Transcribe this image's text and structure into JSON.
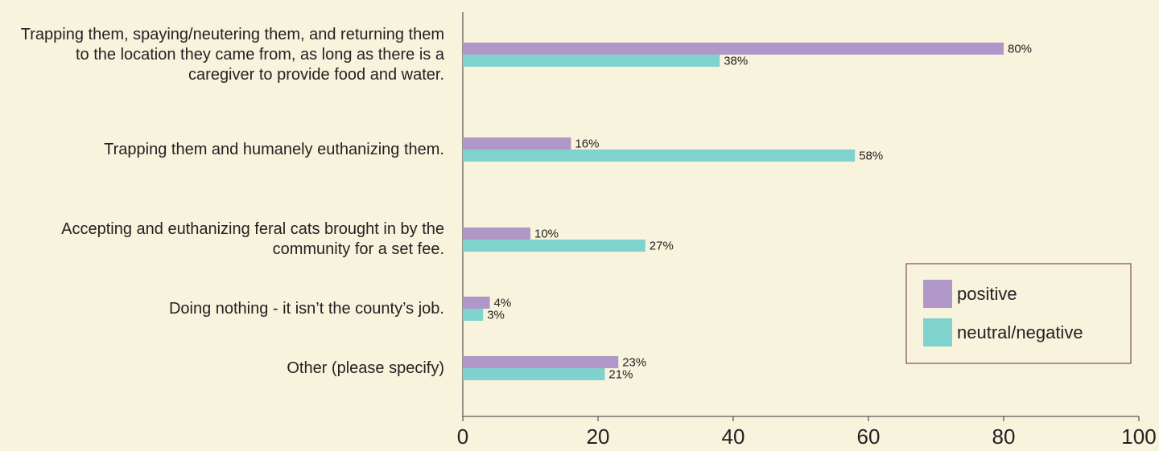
{
  "chart_data": {
    "type": "barh",
    "categories": [
      "Trapping them, spaying/neutering them, and returning them to the location they came from, as long as there is a caregiver to provide food and water.",
      "Trapping them and humanely euthanizing them.",
      "Accepting and euthanizing feral cats brought in by the community for a set fee.",
      "Doing nothing - it isn’t the county’s job.",
      "Other (please specify)"
    ],
    "series": [
      {
        "name": "positive",
        "color": "#b197c8",
        "values": [
          80,
          16,
          10,
          4,
          23
        ],
        "value_labels": [
          "80%",
          "16%",
          "10%",
          "4%",
          "23%"
        ]
      },
      {
        "name": "neutral/negative",
        "color": "#7fd3cf",
        "values": [
          38,
          58,
          27,
          3,
          21
        ],
        "value_labels": [
          "38%",
          "58%",
          "27%",
          "3%",
          "21%"
        ]
      }
    ],
    "xlim": [
      0,
      100
    ],
    "xticks": [
      0,
      20,
      40,
      60,
      80,
      100
    ],
    "legend": "lower right"
  }
}
